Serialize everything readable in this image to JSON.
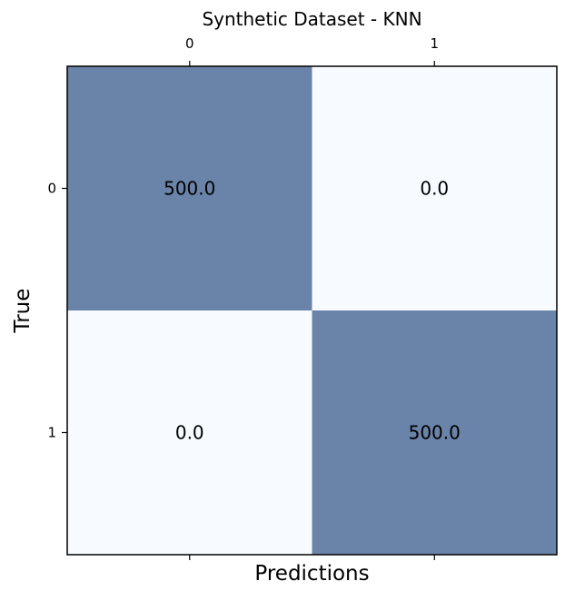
{
  "chart_data": {
    "type": "heatmap",
    "title": "Synthetic Dataset - KNN",
    "xlabel": "Predictions",
    "ylabel": "True",
    "x_categories": [
      "0",
      "1"
    ],
    "y_categories": [
      "0",
      "1"
    ],
    "values": [
      [
        500.0,
        0.0
      ],
      [
        0.0,
        500.0
      ]
    ],
    "value_labels": [
      [
        "500.0",
        "0.0"
      ],
      [
        "0.0",
        "500.0"
      ]
    ],
    "value_range": [
      0,
      500
    ],
    "colors": {
      "low": "#f7fbff",
      "high": "#6a83a8"
    },
    "x_tick_position": "top",
    "legend": "none",
    "grid": false
  }
}
